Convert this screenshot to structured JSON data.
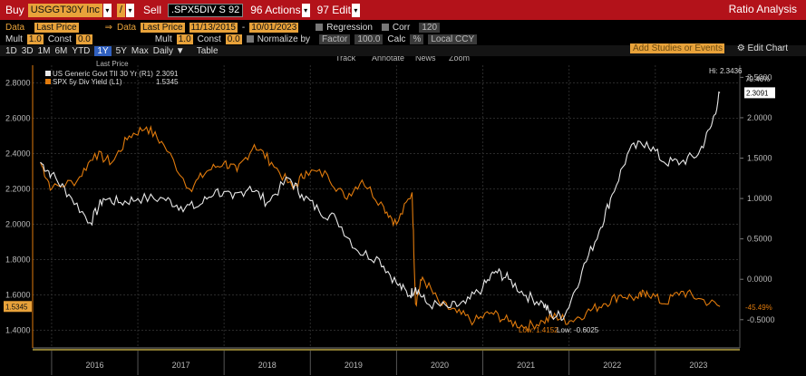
{
  "toolbar": {
    "buy_label": "Buy",
    "buy_ticker": "USGGT30Y Inc",
    "op": "/",
    "sell_label": "Sell",
    "sell_ticker": ".SPX5DIV S 92",
    "actions": "96 Actions",
    "edit": "97 Edit",
    "title": "Ratio Analysis"
  },
  "row1": {
    "data1": "Data",
    "data1_val": "Last Price",
    "arrow": "⇒",
    "data2": "Data",
    "data2_val": "Last Price",
    "date_from": "11/13/2015",
    "dash": "-",
    "date_to": "10/01/2023",
    "regression": "Regression",
    "corr": "Corr",
    "corr_val": "120"
  },
  "row2": {
    "mult1": "Mult",
    "mult1_val": "1.0",
    "const1": "Const",
    "const1_val": "0.0",
    "mult2": "Mult",
    "mult2_val": "1.0",
    "const2": "Const",
    "const2_val": "0.0",
    "normalize": "Normalize by",
    "normalize_val": "Factor",
    "factor_val": "100.0",
    "calc": "Calc",
    "calc_val": "%",
    "ccy": "Local CCY"
  },
  "periods": [
    "1D",
    "3D",
    "1M",
    "6M",
    "YTD",
    "1Y",
    "5Y",
    "Max",
    "Daily ▼",
    "Table"
  ],
  "active_period": "1Y",
  "add_studies": "Add Studies or Events",
  "edit_chart": "Edit Chart",
  "chart_tools": [
    "Track",
    "Annotate",
    "News",
    "Zoom"
  ],
  "legend": {
    "header": "Last Price",
    "s1_name": "US Generic Govt TII 30 Yr  (R1)",
    "s1_val": "2.3091",
    "s2_name": "SPX 5y Div Yield  (L1)",
    "s2_val": "1.5345"
  },
  "annotations": {
    "hi": "Hi: 2.3436",
    "pct_top": "79.46%",
    "low_a": "Low: 1.4152",
    "low_b": "Low: -0.6025",
    "pct_bot": "-45.49%",
    "last_left": "1.5345",
    "last_right": "2.3091"
  },
  "colors": {
    "series1": "#e8e8e8",
    "series2": "#e07a0c",
    "amber": "#e8a23a",
    "brand_red": "#b3121a"
  },
  "chart_data": {
    "type": "line",
    "x_ticks": [
      "2016",
      "2017",
      "2018",
      "2019",
      "2020",
      "2021",
      "2022",
      "2023"
    ],
    "left_axis": {
      "ticks": [
        "2.8000",
        "2.6000",
        "2.4000",
        "2.2000",
        "2.0000",
        "1.8000",
        "1.6000",
        "1.4000"
      ],
      "range": [
        1.3,
        2.9
      ]
    },
    "right_axis": {
      "ticks": [
        "2.5000",
        "2.0000",
        "1.5000",
        "1.0000",
        "0.5000",
        "0.0000",
        "-0.5000"
      ],
      "range": [
        -0.85,
        2.65
      ]
    },
    "series": [
      {
        "name": "US Generic Govt TII 30 Yr",
        "axis": "right",
        "x": [
          2015.87,
          2016.0,
          2016.2,
          2016.45,
          2016.6,
          2016.8,
          2017.0,
          2017.3,
          2017.5,
          2017.7,
          2017.9,
          2018.1,
          2018.3,
          2018.5,
          2018.75,
          2018.9,
          2019.1,
          2019.3,
          2019.55,
          2019.8,
          2020.0,
          2020.15,
          2020.22,
          2020.35,
          2020.6,
          2020.8,
          2021.0,
          2021.15,
          2021.3,
          2021.5,
          2021.7,
          2021.8,
          2021.95,
          2022.15,
          2022.35,
          2022.5,
          2022.7,
          2022.9,
          2023.1,
          2023.3,
          2023.5,
          2023.65,
          2023.75
        ],
        "y": [
          1.45,
          1.3,
          1.05,
          0.7,
          1.0,
          0.95,
          1.0,
          1.0,
          0.9,
          0.9,
          1.1,
          1.0,
          1.15,
          0.95,
          1.25,
          1.05,
          0.85,
          0.75,
          0.35,
          0.25,
          -0.05,
          -0.2,
          -0.1,
          -0.3,
          -0.35,
          -0.3,
          -0.1,
          0.1,
          0.0,
          -0.2,
          -0.3,
          -0.45,
          -0.45,
          0.1,
          0.6,
          1.05,
          1.6,
          1.7,
          1.45,
          1.45,
          1.55,
          1.9,
          2.3091
        ]
      },
      {
        "name": "SPX 5y Div Yield",
        "axis": "left",
        "x": [
          2015.87,
          2016.0,
          2016.3,
          2016.5,
          2016.7,
          2016.9,
          2017.1,
          2017.3,
          2017.6,
          2017.8,
          2018.0,
          2018.15,
          2018.35,
          2018.55,
          2018.8,
          2018.95,
          2019.2,
          2019.4,
          2019.6,
          2019.85,
          2020.0,
          2020.18,
          2020.22,
          2020.3,
          2020.5,
          2020.7,
          2020.9,
          2021.1,
          2021.3,
          2021.5,
          2021.7,
          2021.85,
          2022.0,
          2022.2,
          2022.4,
          2022.6,
          2022.8,
          2022.9,
          2023.1,
          2023.3,
          2023.5,
          2023.75
        ],
        "y": [
          2.35,
          2.2,
          2.25,
          2.4,
          2.35,
          2.5,
          2.55,
          2.45,
          2.2,
          2.3,
          2.35,
          2.3,
          2.45,
          2.35,
          2.2,
          2.3,
          2.28,
          2.15,
          2.25,
          2.1,
          2.0,
          2.18,
          1.55,
          1.7,
          1.55,
          1.5,
          1.45,
          1.5,
          1.45,
          1.42,
          1.45,
          1.48,
          1.45,
          1.5,
          1.55,
          1.6,
          1.58,
          1.62,
          1.55,
          1.62,
          1.58,
          1.5345
        ]
      }
    ]
  }
}
